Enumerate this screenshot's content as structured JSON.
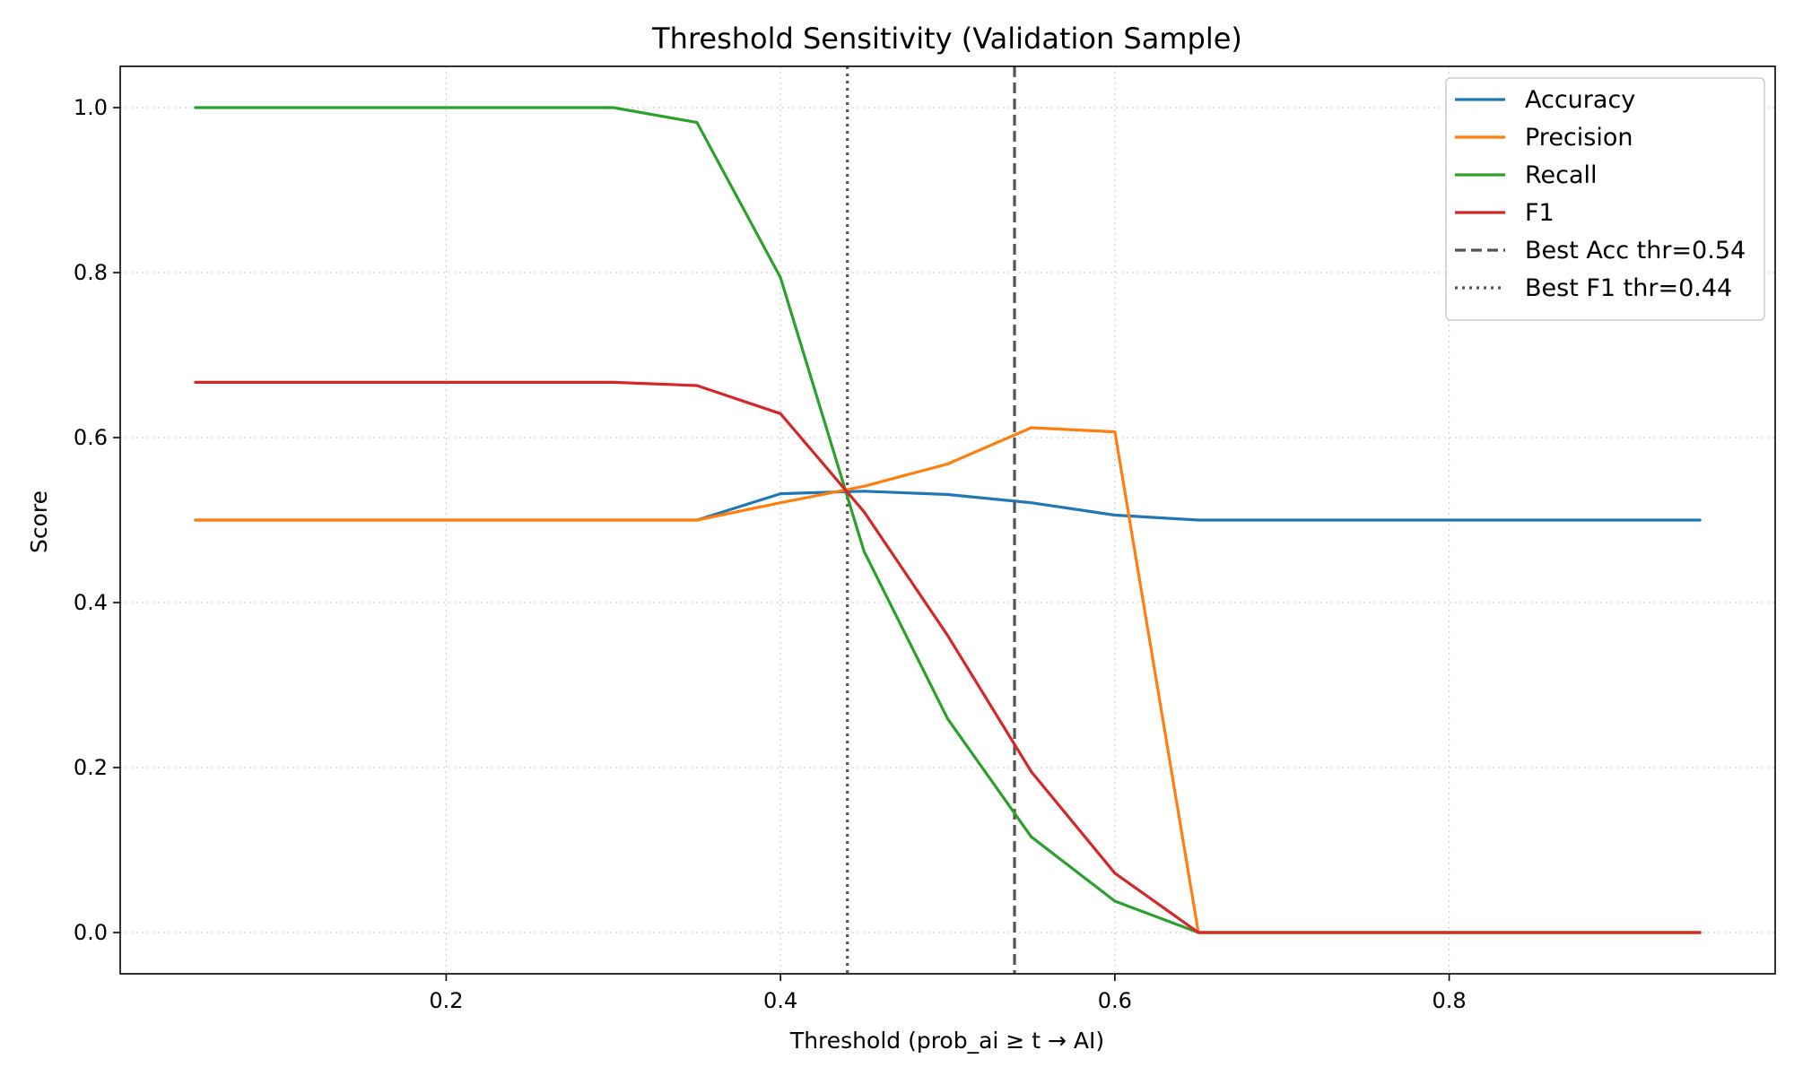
{
  "chart_data": {
    "type": "line",
    "title": "Threshold Sensitivity (Validation Sample)",
    "xlabel": "Threshold (prob_ai ≥ t → AI)",
    "ylabel": "Score",
    "xlim": [
      0.005,
      0.995
    ],
    "ylim": [
      -0.05,
      1.05
    ],
    "xticks": [
      0.2,
      0.4,
      0.6,
      0.8
    ],
    "xtick_labels": [
      "0.2",
      "0.4",
      "0.6",
      "0.8"
    ],
    "yticks": [
      0.0,
      0.2,
      0.4,
      0.6,
      0.8,
      1.0
    ],
    "ytick_labels": [
      "0.0",
      "0.2",
      "0.4",
      "0.6",
      "0.8",
      "1.0"
    ],
    "grid": true,
    "legend_position": "top-right",
    "x": [
      0.05,
      0.1,
      0.15,
      0.2,
      0.25,
      0.3,
      0.35,
      0.4,
      0.45,
      0.5,
      0.55,
      0.6,
      0.65,
      0.7,
      0.75,
      0.8,
      0.85,
      0.9,
      0.95
    ],
    "series": [
      {
        "name": "Accuracy",
        "color": "#1f77b4",
        "values": [
          0.5,
          0.5,
          0.5,
          0.5,
          0.5,
          0.5,
          0.5,
          0.532,
          0.535,
          0.531,
          0.521,
          0.506,
          0.5,
          0.5,
          0.5,
          0.5,
          0.5,
          0.5,
          0.5
        ]
      },
      {
        "name": "Precision",
        "color": "#ff7f0e",
        "values": [
          0.5,
          0.5,
          0.5,
          0.5,
          0.5,
          0.5,
          0.5,
          0.521,
          0.541,
          0.568,
          0.612,
          0.607,
          0.0,
          0.0,
          0.0,
          0.0,
          0.0,
          0.0,
          0.0
        ]
      },
      {
        "name": "Recall",
        "color": "#2ca02c",
        "values": [
          1.0,
          1.0,
          1.0,
          1.0,
          1.0,
          1.0,
          0.982,
          0.794,
          0.462,
          0.259,
          0.116,
          0.038,
          0.0,
          0.0,
          0.0,
          0.0,
          0.0,
          0.0,
          0.0
        ]
      },
      {
        "name": "F1",
        "color": "#d62728",
        "values": [
          0.667,
          0.667,
          0.667,
          0.667,
          0.667,
          0.667,
          0.663,
          0.629,
          0.51,
          0.36,
          0.195,
          0.072,
          0.0,
          0.0,
          0.0,
          0.0,
          0.0,
          0.0,
          0.0
        ]
      }
    ],
    "vlines": [
      {
        "name": "Best Acc thr=0.54",
        "x": 0.54,
        "style": "dashed",
        "color": "#555555"
      },
      {
        "name": "Best F1 thr=0.44",
        "x": 0.44,
        "style": "dotted",
        "color": "#555555"
      }
    ]
  }
}
